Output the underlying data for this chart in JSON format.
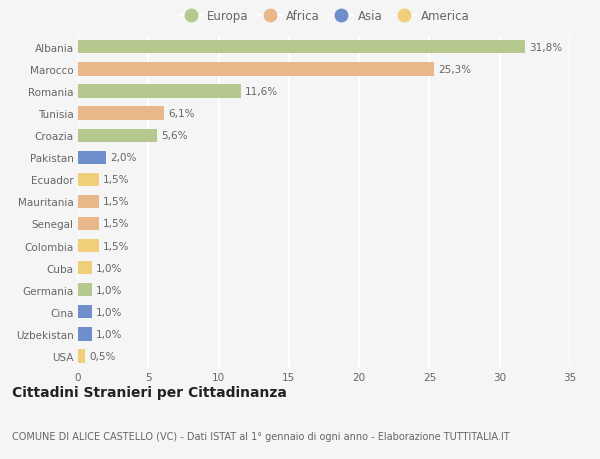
{
  "countries": [
    "Albania",
    "Marocco",
    "Romania",
    "Tunisia",
    "Croazia",
    "Pakistan",
    "Ecuador",
    "Mauritania",
    "Senegal",
    "Colombia",
    "Cuba",
    "Germania",
    "Cina",
    "Uzbekistan",
    "USA"
  ],
  "values": [
    31.8,
    25.3,
    11.6,
    6.1,
    5.6,
    2.0,
    1.5,
    1.5,
    1.5,
    1.5,
    1.0,
    1.0,
    1.0,
    1.0,
    0.5
  ],
  "labels": [
    "31,8%",
    "25,3%",
    "11,6%",
    "6,1%",
    "5,6%",
    "2,0%",
    "1,5%",
    "1,5%",
    "1,5%",
    "1,5%",
    "1,0%",
    "1,0%",
    "1,0%",
    "1,0%",
    "0,5%"
  ],
  "continents": [
    "Europa",
    "Africa",
    "Europa",
    "Africa",
    "Europa",
    "Asia",
    "America",
    "Africa",
    "Africa",
    "America",
    "America",
    "Europa",
    "Asia",
    "Asia",
    "America"
  ],
  "colors": {
    "Europa": "#b5c98e",
    "Africa": "#e8b88a",
    "Asia": "#6e8fcb",
    "America": "#f0ce7a"
  },
  "background_color": "#f5f5f5",
  "grid_color": "#ffffff",
  "xlim": [
    0,
    35
  ],
  "xticks": [
    0,
    5,
    10,
    15,
    20,
    25,
    30,
    35
  ],
  "title": "Cittadini Stranieri per Cittadinanza",
  "subtitle": "COMUNE DI ALICE CASTELLO (VC) - Dati ISTAT al 1° gennaio di ogni anno - Elaborazione TUTTITALIA.IT",
  "title_fontsize": 10,
  "subtitle_fontsize": 7,
  "label_fontsize": 7.5,
  "tick_fontsize": 7.5,
  "legend_fontsize": 8.5
}
